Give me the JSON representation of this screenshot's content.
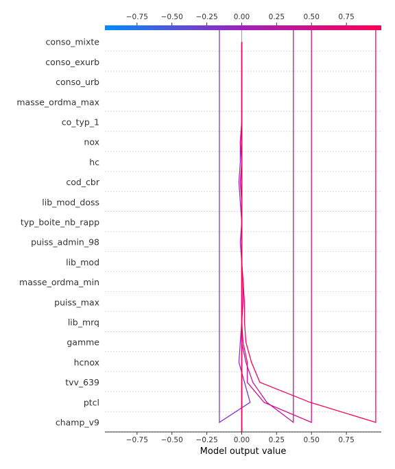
{
  "chart_data": {
    "type": "line",
    "xlabel": "Model output value",
    "xlim": [
      -0.98,
      1.0
    ],
    "xticks": [
      -0.75,
      -0.5,
      -0.25,
      0.0,
      0.25,
      0.5,
      0.75
    ],
    "xtick_labels": [
      "−0.75",
      "−0.50",
      "−0.25",
      "0.00",
      "0.25",
      "0.50",
      "0.75"
    ],
    "base_value": 0.0,
    "colormap": {
      "low": "#008bfb",
      "mid": "#a11fbd",
      "high": "#ff0052"
    },
    "features": [
      "conso_mixte",
      "conso_exurb",
      "conso_urb",
      "masse_ordma_max",
      "co_typ_1",
      "nox",
      "hc",
      "cod_cbr",
      "lib_mod_doss",
      "typ_boite_nb_rapp",
      "puiss_admin_98",
      "lib_mod",
      "masse_ordma_min",
      "puiss_max",
      "lib_mrq",
      "gamme",
      "hcnox",
      "tvv_639",
      "ptcl",
      "champ_v9"
    ],
    "series": [
      {
        "values": [
          0.0,
          0.0,
          0.0,
          0.0,
          0.0,
          -0.01,
          -0.01,
          -0.02,
          -0.01,
          0.0,
          -0.01,
          0.0,
          0.0,
          0.0,
          0.0,
          -0.01,
          -0.02,
          0.02,
          0.06,
          -0.16
        ],
        "final": -0.16
      },
      {
        "values": [
          0.0,
          0.0,
          0.0,
          0.0,
          0.0,
          -0.01,
          0.0,
          -0.01,
          0.0,
          0.0,
          0.0,
          0.0,
          0.0,
          0.0,
          0.0,
          0.0,
          0.03,
          0.08,
          0.18,
          0.37
        ],
        "final": 0.37
      },
      {
        "values": [
          0.0,
          0.0,
          0.0,
          0.0,
          0.0,
          0.0,
          0.0,
          0.0,
          0.0,
          0.0,
          0.0,
          0.0,
          0.01,
          0.01,
          0.0,
          0.01,
          0.04,
          0.04,
          0.16,
          0.5
        ],
        "final": 0.5
      },
      {
        "values": [
          0.0,
          0.0,
          0.0,
          0.0,
          0.0,
          0.0,
          0.0,
          0.0,
          0.0,
          0.0,
          0.0,
          0.0,
          0.01,
          0.02,
          0.02,
          0.03,
          0.07,
          0.13,
          0.49,
          0.96
        ],
        "final": 0.96
      }
    ]
  }
}
